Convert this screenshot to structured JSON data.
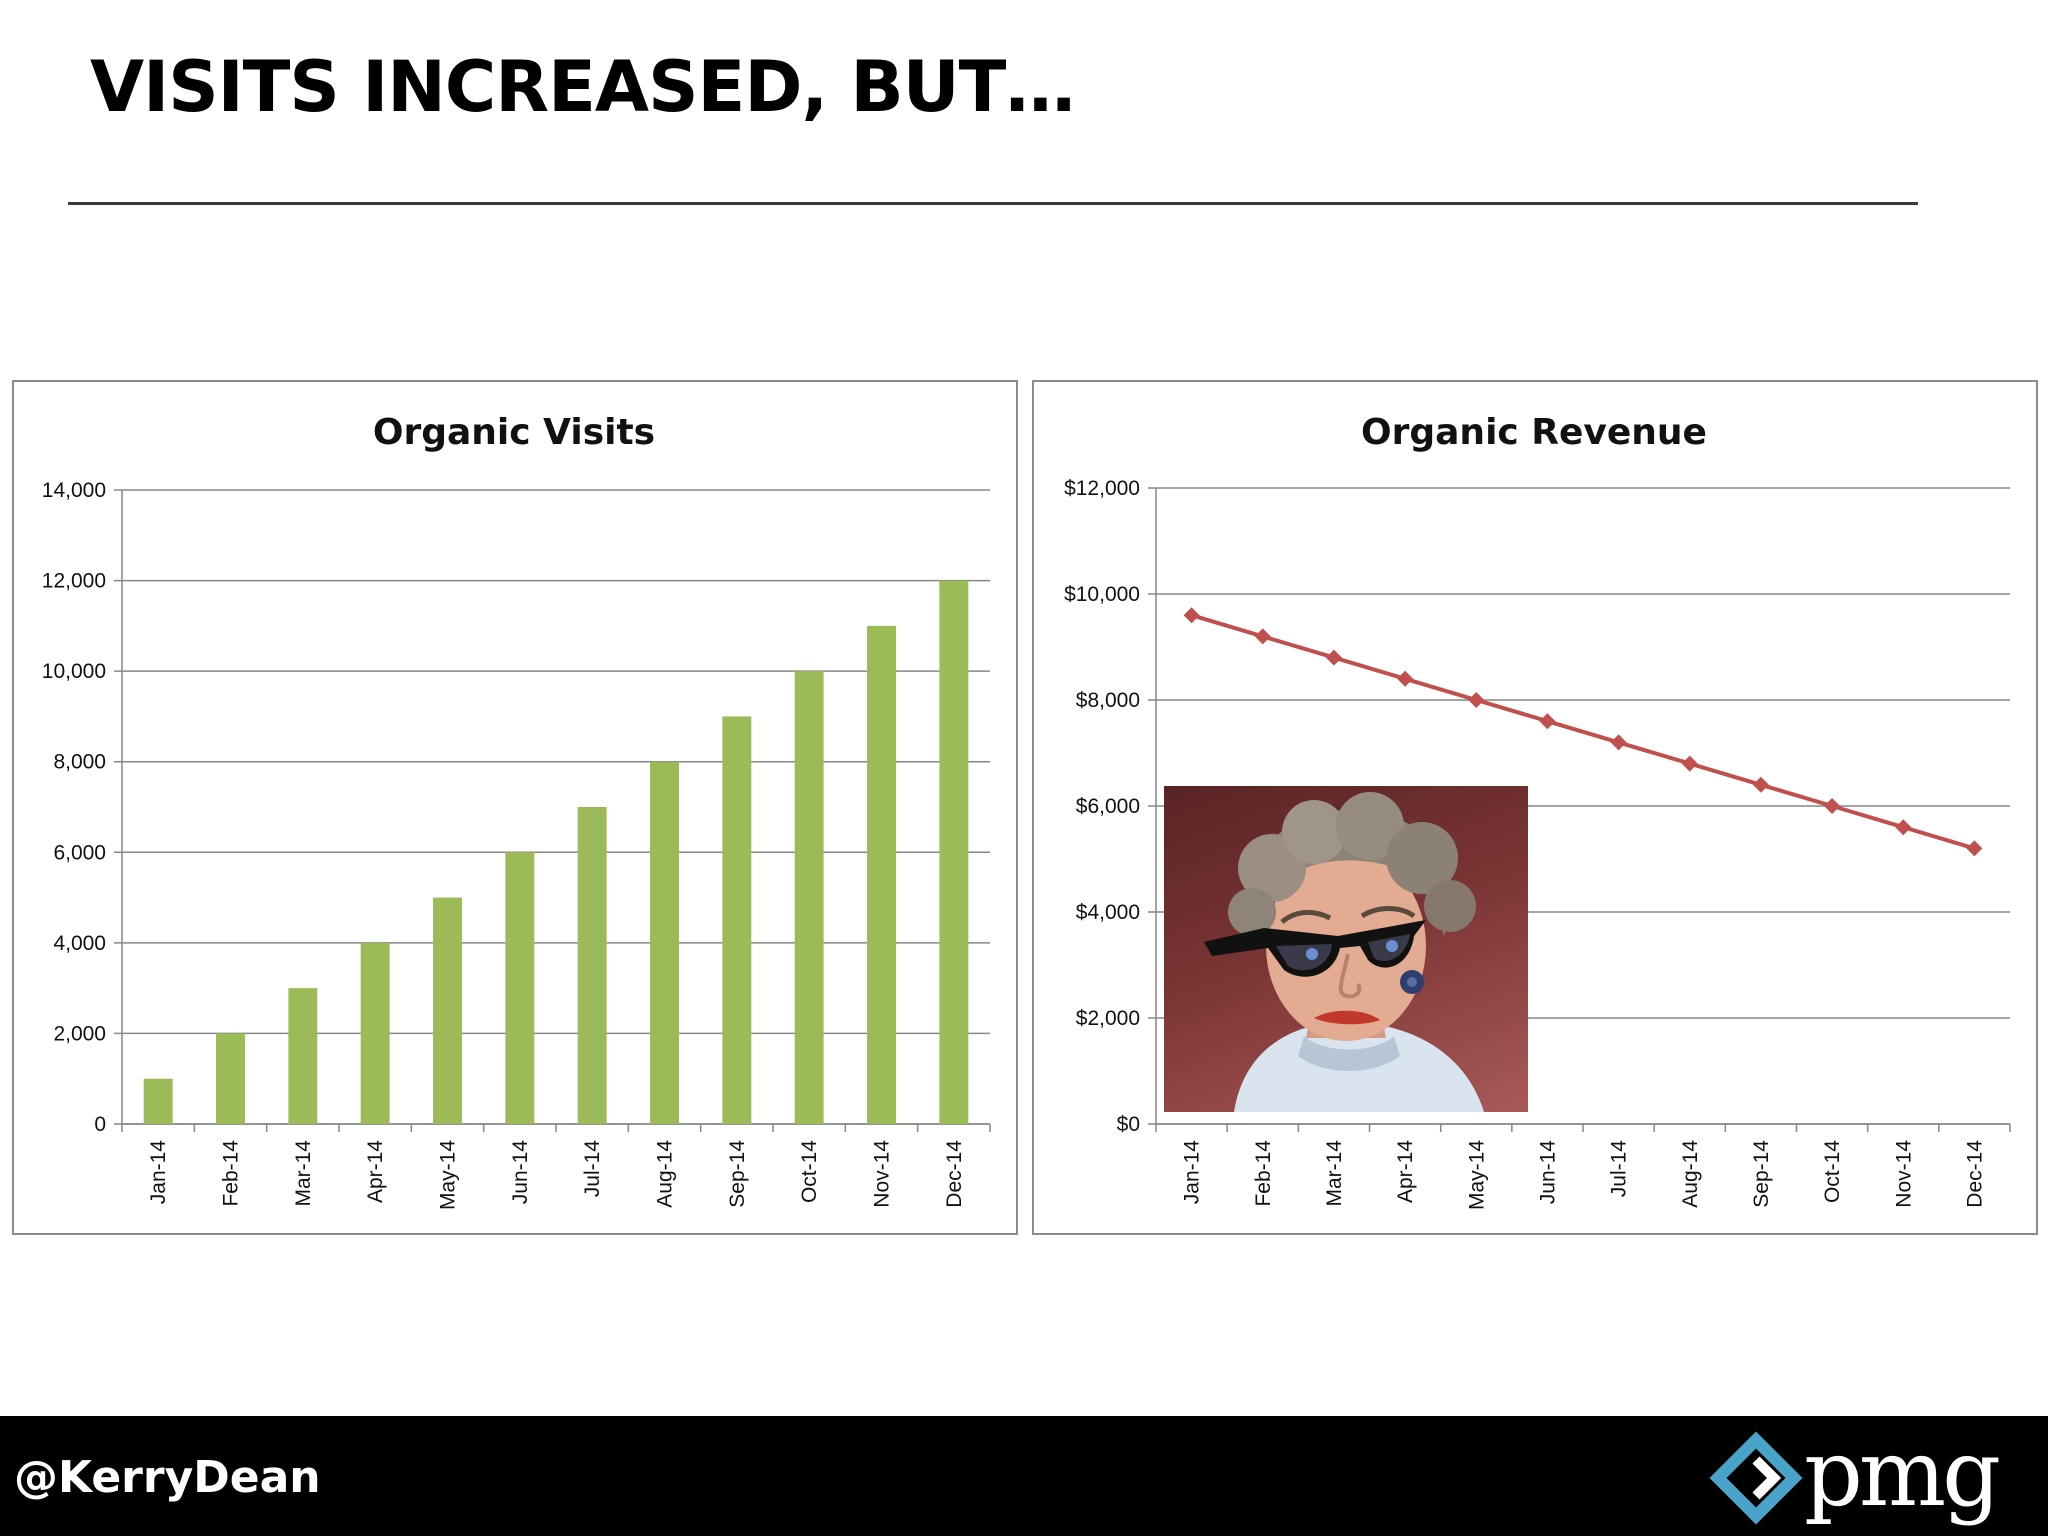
{
  "slide": {
    "title": "VISITS INCREASED, BUT…"
  },
  "footer": {
    "handle": "@KerryDean",
    "logo_text": "pmg"
  },
  "colors": {
    "bar": "#9bbb59",
    "line": "#c0504d",
    "grid": "#868686",
    "logo_accent": "#4aa3c8"
  },
  "chart_data": [
    {
      "type": "bar",
      "title": "Organic Visits",
      "categories": [
        "Jan-14",
        "Feb-14",
        "Mar-14",
        "Apr-14",
        "May-14",
        "Jun-14",
        "Jul-14",
        "Aug-14",
        "Sep-14",
        "Oct-14",
        "Nov-14",
        "Dec-14"
      ],
      "values": [
        1000,
        2000,
        3000,
        4000,
        5000,
        6000,
        7000,
        8000,
        9000,
        10000,
        11000,
        12000
      ],
      "ylim": [
        0,
        14000
      ],
      "yticks": [
        0,
        2000,
        4000,
        6000,
        8000,
        10000,
        12000,
        14000
      ],
      "ytick_labels": [
        "0",
        "2,000",
        "4,000",
        "6,000",
        "8,000",
        "10,000",
        "12,000",
        "14,000"
      ],
      "grid": true,
      "legend": "none"
    },
    {
      "type": "line",
      "title": "Organic Revenue",
      "categories": [
        "Jan-14",
        "Feb-14",
        "Mar-14",
        "Apr-14",
        "May-14",
        "Jun-14",
        "Jul-14",
        "Aug-14",
        "Sep-14",
        "Oct-14",
        "Nov-14",
        "Dec-14"
      ],
      "values": [
        9600,
        9200,
        8800,
        8400,
        8000,
        7600,
        7200,
        6800,
        6400,
        6000,
        5600,
        5200
      ],
      "ylim": [
        0,
        12000
      ],
      "yticks": [
        0,
        2000,
        4000,
        6000,
        8000,
        10000,
        12000
      ],
      "ytick_labels": [
        "$0",
        "$2,000",
        "$4,000",
        "$6,000",
        "$8,000",
        "$10,000",
        "$12,000"
      ],
      "marker": "diamond",
      "grid": true,
      "legend": "none"
    }
  ]
}
